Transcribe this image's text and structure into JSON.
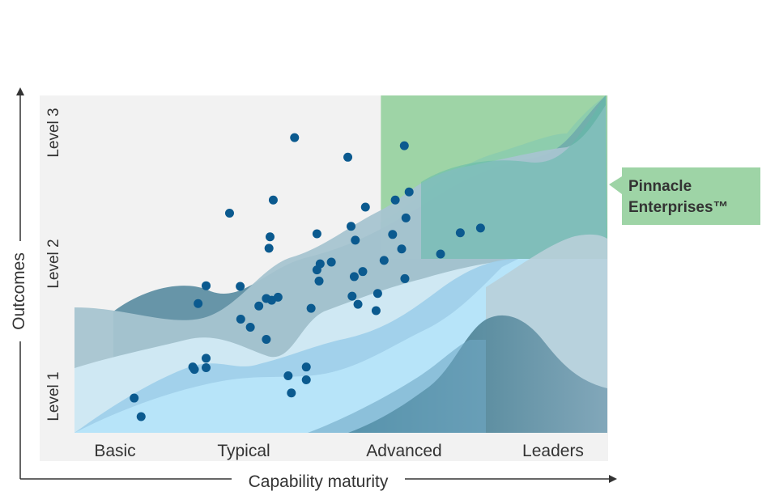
{
  "chart_data": {
    "type": "scatter",
    "title": "",
    "xlabel": "Capability maturity",
    "ylabel": "Outcomes",
    "x_categories": [
      "Basic",
      "Typical",
      "Advanced",
      "Leaders"
    ],
    "y_categories": [
      "Level 1",
      "Level 2",
      "Level 3"
    ],
    "xlim": [
      0,
      100
    ],
    "ylim": [
      0,
      100
    ],
    "highlight_region": {
      "label": "Pinnacle Enterprises™",
      "x_range": [
        57.5,
        100
      ],
      "y_range": [
        51.6,
        100
      ]
    },
    "points": [
      {
        "x": 11.2,
        "y": 10.3
      },
      {
        "x": 12.5,
        "y": 4.8
      },
      {
        "x": 22.2,
        "y": 19.5
      },
      {
        "x": 22.5,
        "y": 18.8
      },
      {
        "x": 24.7,
        "y": 19.3
      },
      {
        "x": 24.7,
        "y": 22.1
      },
      {
        "x": 23.2,
        "y": 38.3
      },
      {
        "x": 24.7,
        "y": 43.6
      },
      {
        "x": 29.1,
        "y": 65.1
      },
      {
        "x": 31.1,
        "y": 43.4
      },
      {
        "x": 31.2,
        "y": 33.7
      },
      {
        "x": 33.0,
        "y": 31.3
      },
      {
        "x": 34.6,
        "y": 37.6
      },
      {
        "x": 36.0,
        "y": 39.8
      },
      {
        "x": 36.0,
        "y": 27.7
      },
      {
        "x": 37.0,
        "y": 39.3
      },
      {
        "x": 38.2,
        "y": 40.2
      },
      {
        "x": 36.5,
        "y": 54.7
      },
      {
        "x": 36.7,
        "y": 58.1
      },
      {
        "x": 37.3,
        "y": 69.0
      },
      {
        "x": 40.1,
        "y": 16.9
      },
      {
        "x": 40.7,
        "y": 11.8
      },
      {
        "x": 43.5,
        "y": 15.7
      },
      {
        "x": 43.5,
        "y": 19.5
      },
      {
        "x": 41.3,
        "y": 87.5
      },
      {
        "x": 44.4,
        "y": 36.9
      },
      {
        "x": 45.5,
        "y": 59.0
      },
      {
        "x": 45.5,
        "y": 48.3
      },
      {
        "x": 45.9,
        "y": 45.0
      },
      {
        "x": 46.1,
        "y": 50.1
      },
      {
        "x": 48.2,
        "y": 50.6
      },
      {
        "x": 51.3,
        "y": 81.7
      },
      {
        "x": 51.9,
        "y": 61.2
      },
      {
        "x": 52.7,
        "y": 57.1
      },
      {
        "x": 52.1,
        "y": 40.5
      },
      {
        "x": 52.5,
        "y": 46.3
      },
      {
        "x": 53.2,
        "y": 38.1
      },
      {
        "x": 54.1,
        "y": 47.8
      },
      {
        "x": 54.6,
        "y": 66.9
      },
      {
        "x": 56.9,
        "y": 41.3
      },
      {
        "x": 56.6,
        "y": 36.2
      },
      {
        "x": 58.1,
        "y": 51.1
      },
      {
        "x": 59.7,
        "y": 58.8
      },
      {
        "x": 60.2,
        "y": 69.0
      },
      {
        "x": 62.2,
        "y": 63.7
      },
      {
        "x": 62.8,
        "y": 71.4
      },
      {
        "x": 61.9,
        "y": 85.1
      },
      {
        "x": 61.4,
        "y": 54.5
      },
      {
        "x": 62.0,
        "y": 45.7
      },
      {
        "x": 68.7,
        "y": 53.0
      },
      {
        "x": 72.4,
        "y": 59.3
      },
      {
        "x": 76.2,
        "y": 60.7
      }
    ]
  },
  "colors": {
    "plot_background": "#f2f2f2",
    "highlight_fill": "#8ccb96",
    "highlight_band": "#bfe7f7",
    "point_color": "#0b5a8f",
    "callout_fill": "#9ed4a6",
    "axis_color": "#333333"
  }
}
